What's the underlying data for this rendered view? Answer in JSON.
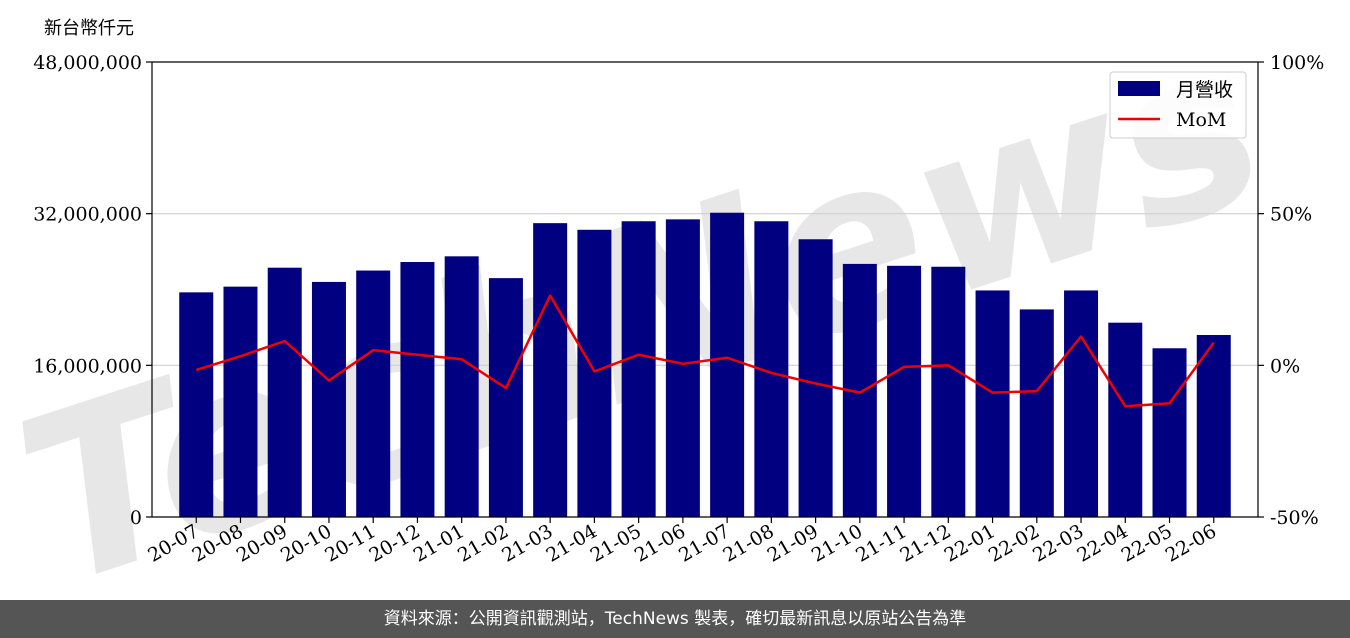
{
  "chart_data": {
    "type": "bar",
    "y_unit_label": "新台幣仟元",
    "categories": [
      "20-07",
      "20-08",
      "20-09",
      "20-10",
      "20-11",
      "20-12",
      "21-01",
      "21-02",
      "21-03",
      "21-04",
      "21-05",
      "21-06",
      "21-07",
      "21-08",
      "21-09",
      "21-10",
      "21-11",
      "21-12",
      "22-01",
      "22-02",
      "22-03",
      "22-04",
      "22-05",
      "22-06"
    ],
    "series": [
      {
        "name": "月營收",
        "type": "bar",
        "axis": "left",
        "color": "#000080",
        "values": [
          23700000,
          24300000,
          26300000,
          24800000,
          26000000,
          26900000,
          27500000,
          25200000,
          31000000,
          30300000,
          31200000,
          31400000,
          32100000,
          31200000,
          29300000,
          26700000,
          26500000,
          26400000,
          23900000,
          21900000,
          23900000,
          20500000,
          17800000,
          19200000
        ]
      },
      {
        "name": "MoM",
        "type": "line",
        "axis": "right",
        "color": "#ee0000",
        "values": [
          -1.5,
          3.0,
          8.0,
          -5.0,
          5.0,
          3.5,
          2.0,
          -7.5,
          23.0,
          -2.0,
          3.5,
          0.5,
          2.5,
          -2.5,
          -6.0,
          -9.0,
          -0.5,
          0.0,
          -9.0,
          -8.5,
          9.5,
          -13.5,
          -12.5,
          7.5
        ]
      }
    ],
    "ylim": [
      0,
      48000000
    ],
    "y_ticks": [
      "0",
      "16,000,000",
      "32,000,000",
      "48,000,000"
    ],
    "y_tick_values": [
      0,
      16000000,
      32000000,
      48000000
    ],
    "y2lim": [
      -50,
      100
    ],
    "y2_ticks": [
      "-50%",
      "0%",
      "50%",
      "100%"
    ],
    "y2_tick_values": [
      -50,
      0,
      50,
      100
    ],
    "grid": "horizontal",
    "legend_position": "top-right",
    "watermark": "TechNews"
  },
  "footer": {
    "text": "資料來源：公開資訊觀測站，TechNews 製表，確切最新訊息以原站公告為準"
  }
}
